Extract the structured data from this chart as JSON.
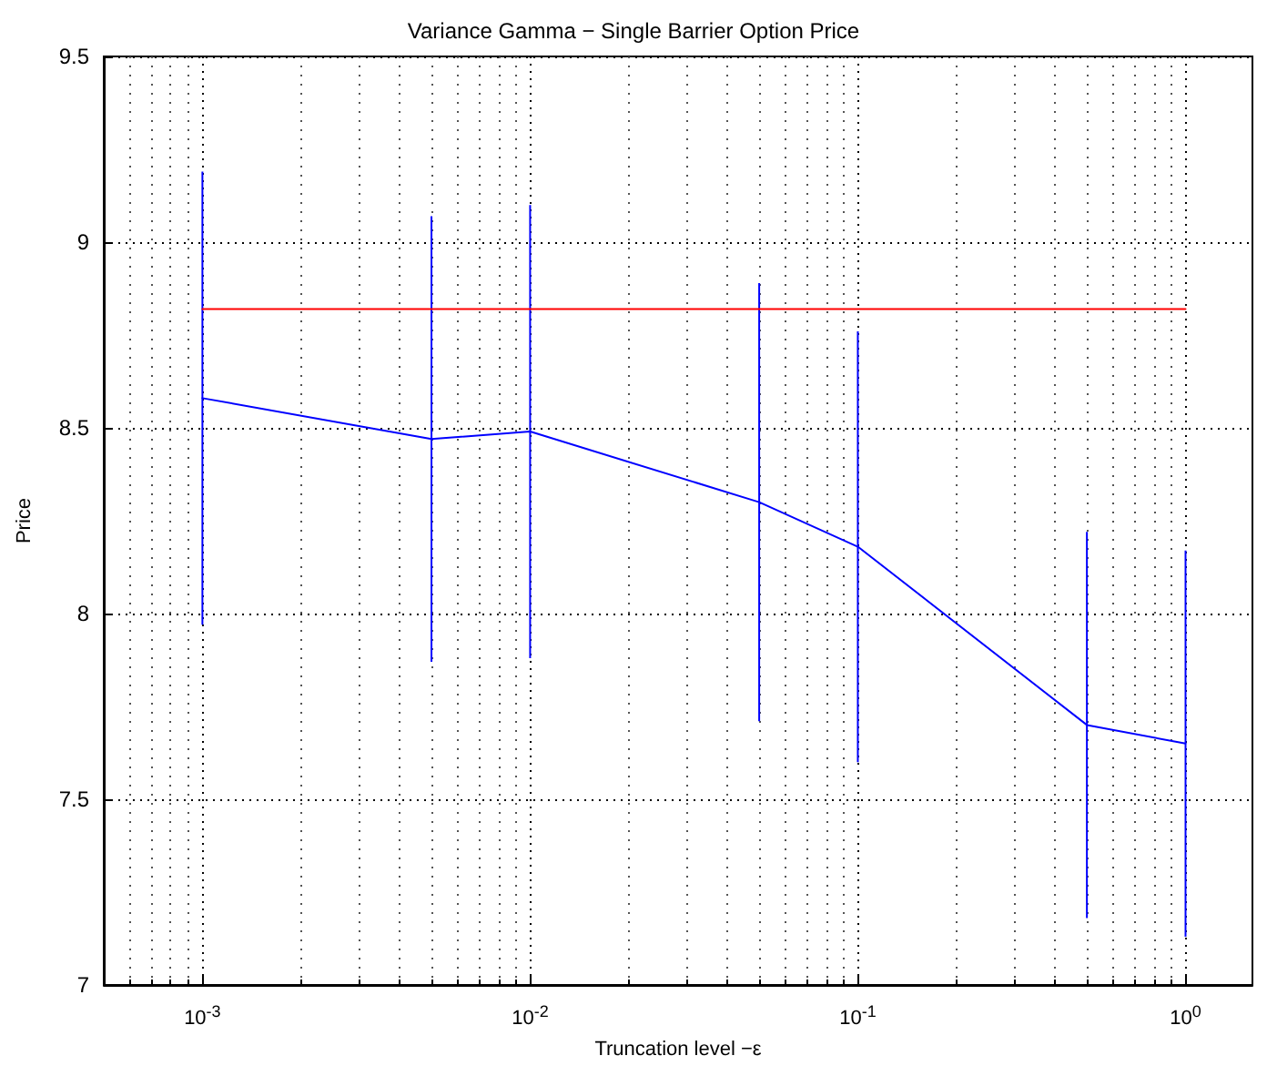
{
  "chart_data": {
    "type": "line",
    "title": "Variance Gamma − Single Barrier Option Price",
    "xlabel": "Truncation level −ε",
    "ylabel": "Price",
    "x": [
      0.001,
      0.005,
      0.01,
      0.05,
      0.1,
      0.5,
      1
    ],
    "series": [
      {
        "color": "#0000ff",
        "values": [
          8.58,
          8.47,
          8.49,
          8.3,
          8.18,
          7.7,
          7.65
        ],
        "errors": [
          0.61,
          0.6,
          0.61,
          0.59,
          0.58,
          0.52,
          0.52
        ]
      },
      {
        "color": "#ff0000",
        "x": [
          0.001,
          1
        ],
        "values": [
          8.82,
          8.82
        ]
      }
    ],
    "log": "x",
    "xlim": [
      0.0005,
      1.6
    ],
    "xticks": [
      {
        "value": 0.001,
        "label": "10$^{-3}$"
      },
      {
        "value": 0.01,
        "label": "10$^{-2}$"
      },
      {
        "value": 0.1,
        "label": "10$^{-1}$"
      },
      {
        "value": 1,
        "label": "10$^{0}$"
      }
    ],
    "ylim": [
      7,
      9.5
    ],
    "yticks": [
      7,
      7.5,
      8,
      8.5,
      9,
      9.5
    ],
    "grid": true,
    "marker": "none",
    "line_style": "solid"
  }
}
